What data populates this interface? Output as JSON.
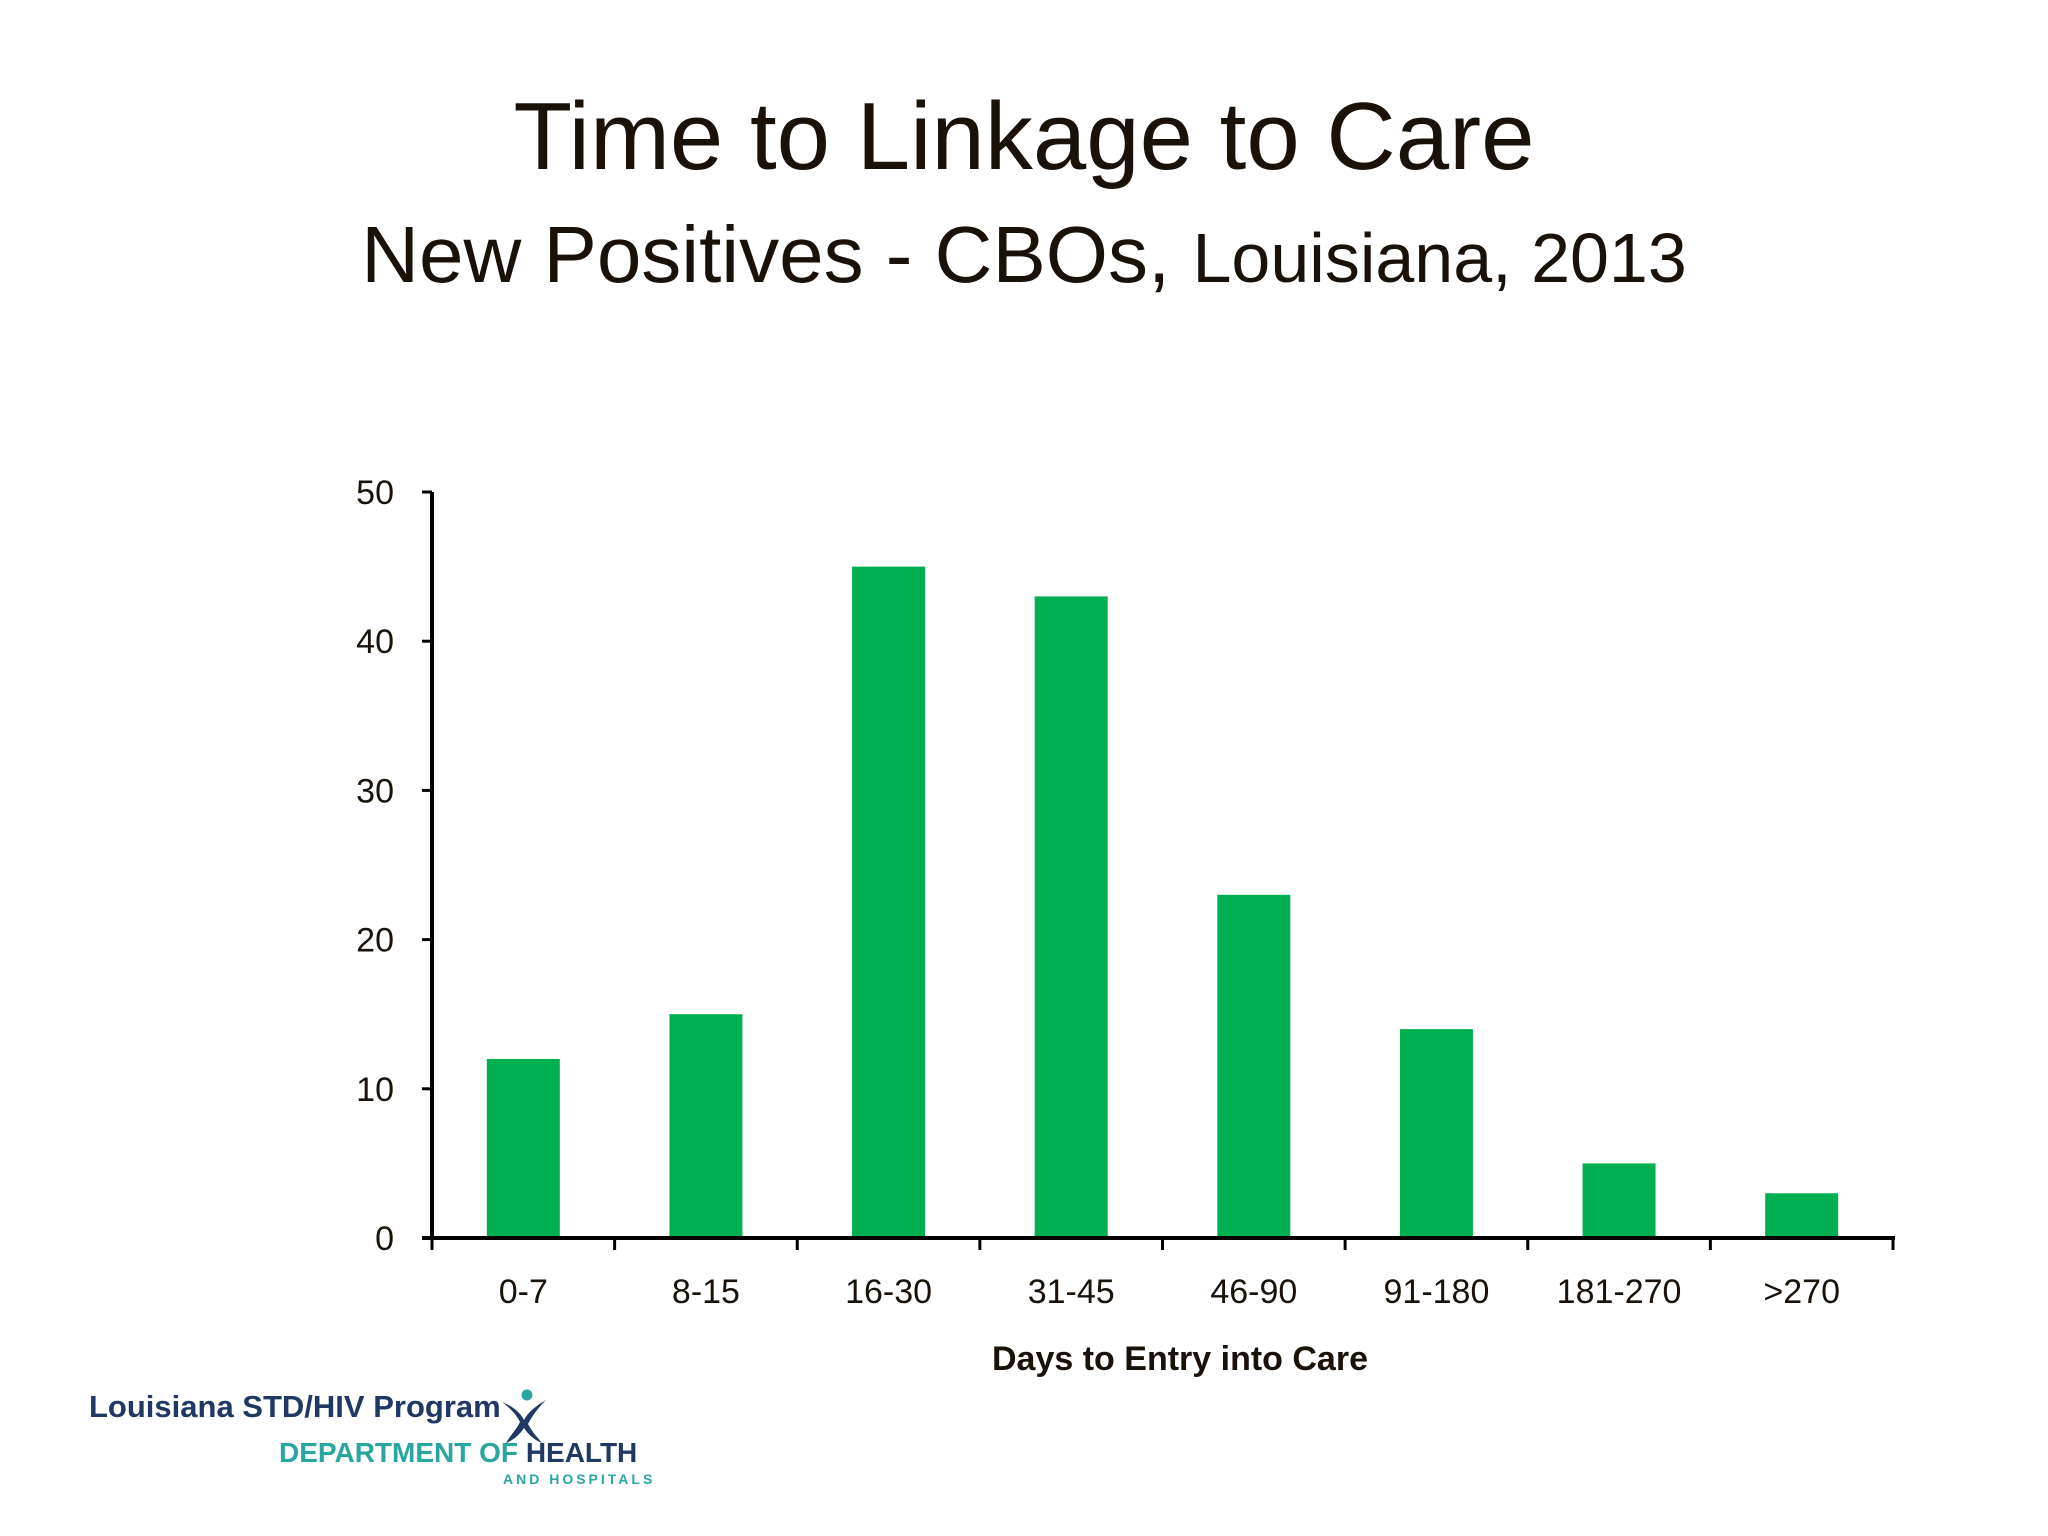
{
  "slide": {
    "title": "Time to Linkage to Care",
    "subtitle_main": "New Positives - CBOs,",
    "subtitle_rest": "Louisiana, 2013"
  },
  "footer": {
    "program": "Louisiana STD/HIV Program",
    "dept_prefix": "DEPARTMENT OF ",
    "dept_health": "HEALTH",
    "dept_sub": "AND HOSPITALS",
    "logo_icon": "dhh-figure-logo",
    "colors": {
      "navy": "#1f3864",
      "teal": "#2aa6a0"
    }
  },
  "chart_data": {
    "type": "bar",
    "title": "",
    "xlabel": "Days to Entry into Care",
    "ylabel": "",
    "categories": [
      "0-7",
      "8-15",
      "16-30",
      "31-45",
      "46-90",
      "91-180",
      "181-270",
      ">270"
    ],
    "values": [
      12,
      15,
      45,
      43,
      23,
      14,
      5,
      3
    ],
    "ylim": [
      0,
      50
    ],
    "yticks": [
      0,
      10,
      20,
      30,
      40,
      50
    ],
    "grid": false,
    "legend": "none",
    "bar_color": "#00b050"
  }
}
